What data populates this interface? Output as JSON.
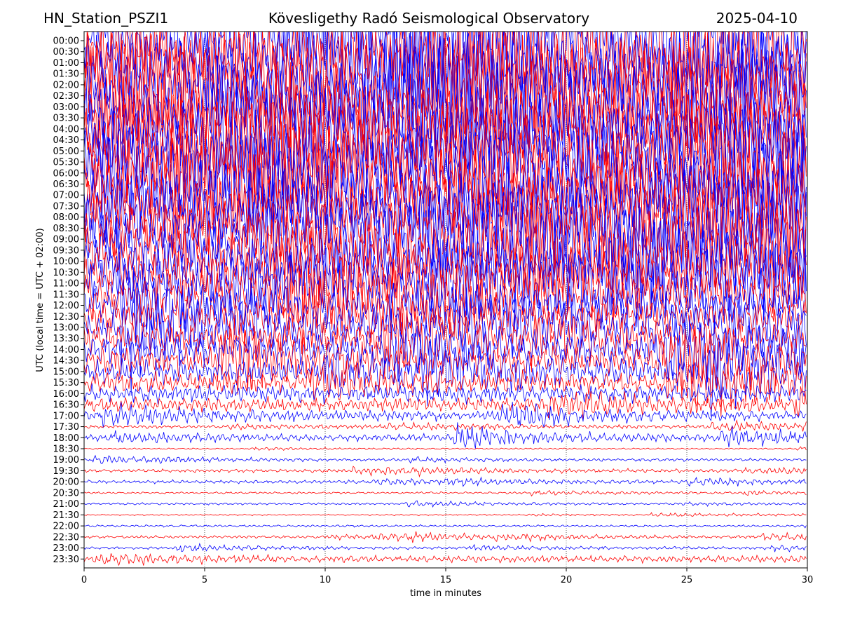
{
  "header": {
    "station": "HN_Station_PSZI1",
    "observatory": "Kövesligethy Radó Seismological Observatory",
    "date": "2025-04-10"
  },
  "chart_data": {
    "type": "line",
    "title": "Kövesligethy Radó Seismological Observatory",
    "xlabel": "time in minutes",
    "ylabel": "UTC (local time = UTC + 02:00)",
    "xlim": [
      0,
      30
    ],
    "x_ticks": [
      "0",
      "5",
      "10",
      "15",
      "20",
      "25",
      "30"
    ],
    "grid": "vertical dotted lines at 5-minute ticks",
    "row_labels": [
      "00:00",
      "00:30",
      "01:00",
      "01:30",
      "02:00",
      "02:30",
      "03:00",
      "03:30",
      "04:00",
      "04:30",
      "05:00",
      "05:30",
      "06:00",
      "06:30",
      "07:00",
      "07:30",
      "08:00",
      "08:30",
      "09:00",
      "09:30",
      "10:00",
      "10:30",
      "11:00",
      "11:30",
      "12:00",
      "12:30",
      "13:00",
      "13:30",
      "14:00",
      "14:30",
      "15:00",
      "15:30",
      "16:00",
      "16:30",
      "17:00",
      "17:30",
      "18:00",
      "18:30",
      "19:00",
      "19:30",
      "20:00",
      "20:30",
      "21:00",
      "21:30",
      "22:00",
      "22:30",
      "23:00",
      "23:30"
    ],
    "trace_colors": [
      "#0000ff",
      "#ff0000"
    ],
    "relative_amplitude": [
      9,
      9,
      9,
      9,
      9,
      9,
      9,
      9,
      9,
      9,
      9,
      9,
      9,
      9,
      9,
      9,
      9,
      9,
      8,
      8,
      7,
      7,
      6,
      6,
      5.5,
      5,
      5,
      4.5,
      4.5,
      4,
      3.5,
      3,
      2.5,
      2,
      1.4,
      0.5,
      1,
      0.2,
      0.4,
      0.5,
      0.5,
      0.3,
      0.3,
      0.2,
      0.3,
      0.4,
      0.4,
      1
    ]
  }
}
